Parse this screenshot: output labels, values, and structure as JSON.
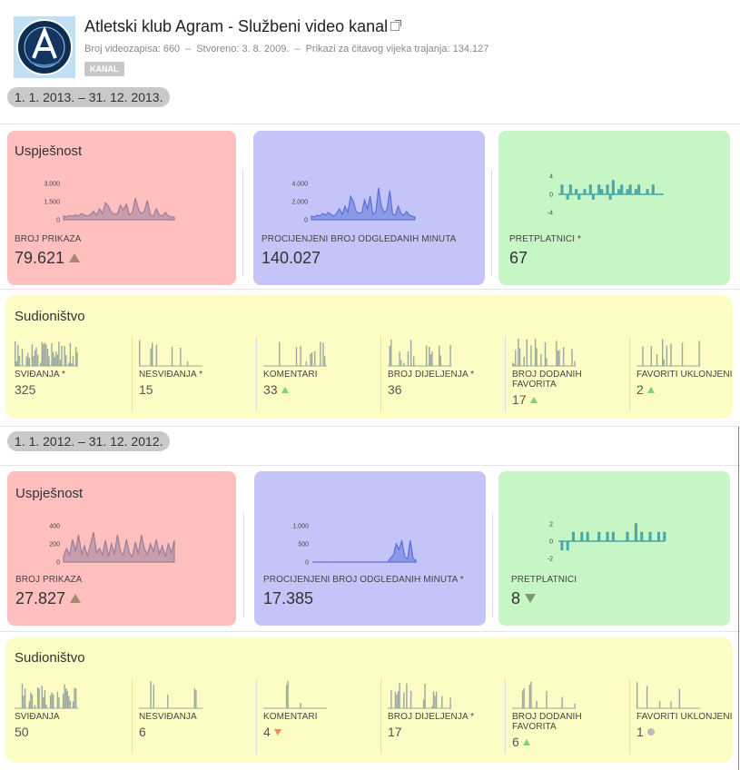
{
  "header": {
    "title": "Atletski klub Agram - Službeni video kanal",
    "video_count": "Broj videozapisa: 660",
    "created": "Stvoreno: 3. 8. 2009.",
    "views": "Prikazi za čitavog vijeka trajanja: 134.127",
    "separator": "–",
    "badge": "KANAL"
  },
  "colors": {
    "performance": "#ffbfbf",
    "minutes": "#c4c4f8",
    "subscribers": "#c6f6c6",
    "engagement": "#fdfcc4",
    "views_line": "#9a7f9a",
    "minutes_line": "#5c72d8",
    "subs_line": "#4aa5a5",
    "small_bars": "#9aa8a0"
  },
  "periods": [
    {
      "range": "1. 1. 2013. – 31. 12. 2013.",
      "performance": {
        "title": "Uspješnost",
        "views": {
          "label": "BROJ PRIKAZA",
          "value": "79.621",
          "trend": "up",
          "ticks": [
            "3.000",
            "1.500",
            "0"
          ],
          "chart_data": {
            "type": "area",
            "ylim": [
              0,
              3000
            ],
            "values": [
              300,
              250,
              350,
              280,
              400,
              320,
              500,
              380,
              300,
              420,
              700,
              380,
              900,
              500,
              1400,
              1100,
              600,
              450,
              500,
              1200,
              800,
              1300,
              400,
              600,
              1800,
              900,
              500,
              700,
              1600,
              400,
              300,
              900,
              400,
              300,
              600,
              300,
              250,
              200
            ]
          }
        },
        "minutes": {
          "label": "PROCIJENJENI BROJ ODGLEDANIH MINUTA",
          "value": "140.027",
          "ticks": [
            "4.000",
            "2.000",
            "0"
          ],
          "chart_data": {
            "type": "area",
            "ylim": [
              0,
              4000
            ],
            "values": [
              400,
              300,
              500,
              400,
              700,
              500,
              800,
              600,
              400,
              700,
              1200,
              600,
              1500,
              800,
              2600,
              2000,
              900,
              700,
              800,
              2200,
              1200,
              2600,
              600,
              900,
              3500,
              1500,
              800,
              1100,
              3200,
              600,
              500,
              1500,
              700,
              500,
              900,
              500,
              400,
              300
            ]
          }
        },
        "subscribers": {
          "label": "PRETPLATNICI *",
          "value": "67",
          "ticks": [
            "4",
            "0",
            "-4"
          ],
          "chart_data": {
            "type": "line",
            "ylim": [
              -4,
              4
            ],
            "values": [
              0,
              2,
              0,
              -1,
              2,
              0,
              1,
              -1,
              0,
              1,
              0,
              2,
              -1,
              0,
              2,
              1,
              0,
              2,
              -1,
              3,
              0,
              1,
              2,
              0,
              1,
              2,
              0,
              1,
              2,
              0,
              0,
              1,
              0,
              2,
              0,
              0,
              0,
              0
            ]
          }
        }
      },
      "engagement": {
        "title": "Sudioništvo",
        "items": [
          {
            "label": "SVIĐANJA *",
            "value": "325",
            "trend": "none"
          },
          {
            "label": "NESVIĐANJA *",
            "value": "15",
            "trend": "none"
          },
          {
            "label": "KOMENTARI",
            "value": "33",
            "trend": "up"
          },
          {
            "label": "BROJ DIJELJENJA *",
            "value": "36",
            "trend": "none"
          },
          {
            "label": "BROJ DODANIH FAVORITA",
            "value": "17",
            "trend": "up"
          },
          {
            "label": "FAVORITI UKLONJENI",
            "value": "2",
            "trend": "up"
          }
        ]
      }
    },
    {
      "range": "1. 1. 2012. – 31. 12. 2012.",
      "performance": {
        "title": "Uspješnost",
        "views": {
          "label": "BROJ PRIKAZA",
          "value": "27.827",
          "trend": "up",
          "ticks": [
            "400",
            "200",
            "0"
          ],
          "chart_data": {
            "type": "area",
            "ylim": [
              0,
              400
            ],
            "values": [
              60,
              150,
              80,
              250,
              120,
              300,
              90,
              180,
              60,
              200,
              330,
              100,
              150,
              80,
              240,
              60,
              200,
              90,
              300,
              120,
              80,
              250,
              100,
              60,
              220,
              90,
              300,
              150,
              80,
              200,
              120,
              250,
              90,
              180,
              60,
              200,
              100,
              240
            ]
          }
        },
        "minutes": {
          "label": "PROCIJENJENI BROJ ODGLEDANIH MINUTA *",
          "value": "17.385",
          "ticks": [
            "1.000",
            "500",
            "0"
          ],
          "chart_data": {
            "type": "area",
            "ylim": [
              0,
              1000
            ],
            "values": [
              0,
              0,
              0,
              0,
              0,
              0,
              0,
              0,
              0,
              0,
              0,
              0,
              0,
              0,
              0,
              0,
              0,
              0,
              0,
              0,
              0,
              0,
              0,
              0,
              0,
              0,
              0,
              0,
              120,
              200,
              500,
              350,
              600,
              150,
              80,
              600,
              100,
              50
            ]
          }
        },
        "subscribers": {
          "label": "PRETPLATNICI",
          "value": "8",
          "trend": "down",
          "ticks": [
            "2",
            "0",
            "-2"
          ],
          "chart_data": {
            "type": "line",
            "ylim": [
              -2,
              2
            ],
            "values": [
              0,
              -1,
              0,
              -1,
              0,
              1,
              0,
              0,
              1,
              0,
              1,
              0,
              0,
              0,
              1,
              0,
              0,
              1,
              0,
              1,
              0,
              0,
              0,
              0,
              1,
              0,
              0,
              2,
              0,
              1,
              0,
              0,
              1,
              0,
              0,
              1,
              0,
              1
            ]
          }
        }
      },
      "engagement": {
        "title": "Sudioništvo",
        "items": [
          {
            "label": "SVIĐANJA",
            "value": "50",
            "trend": "none"
          },
          {
            "label": "NESVIĐANJA",
            "value": "6",
            "trend": "none"
          },
          {
            "label": "KOMENTARI",
            "value": "4",
            "trend": "down"
          },
          {
            "label": "BROJ DIJELJENJA *",
            "value": "17",
            "trend": "none"
          },
          {
            "label": "BROJ DODANIH FAVORITA",
            "value": "6",
            "trend": "up"
          },
          {
            "label": "FAVORITI UKLONJENI",
            "value": "1",
            "trend": "neutral"
          }
        ]
      }
    }
  ]
}
